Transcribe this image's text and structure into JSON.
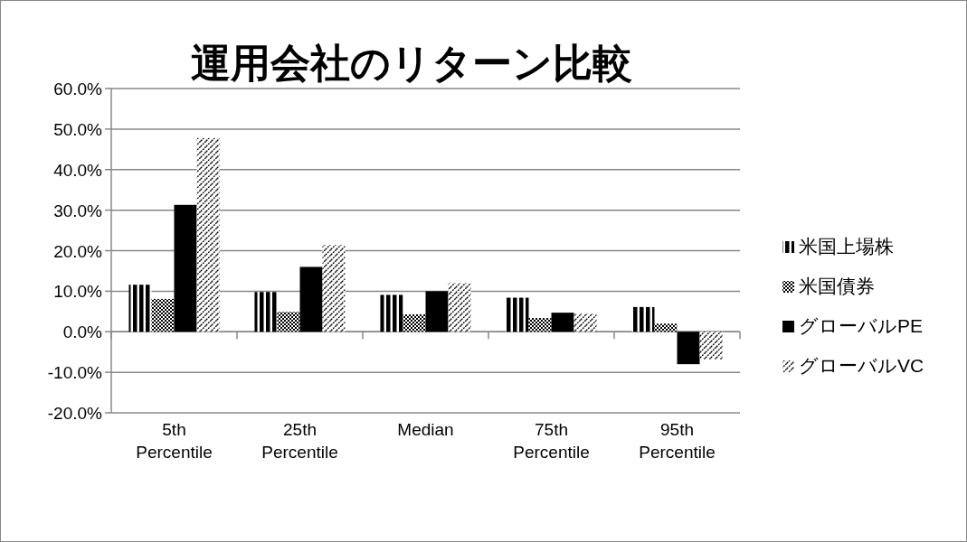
{
  "chart_data": {
    "type": "bar",
    "title": "運用会社のリターン比較",
    "categories": [
      "5th Percentile",
      "25th Percentile",
      "Median",
      "75th Percentile",
      "95th Percentile"
    ],
    "series": [
      {
        "name": "米国上場株",
        "color": "#000000",
        "values": [
          11.6,
          9.8,
          9.1,
          8.4,
          6.1
        ]
      },
      {
        "name": "米国債券",
        "color": "#000000",
        "values": [
          8.1,
          4.9,
          4.3,
          3.4,
          2.0
        ]
      },
      {
        "name": "グローバルPE",
        "color": "#000000",
        "values": [
          31.3,
          16.0,
          10.0,
          4.7,
          -8.0
        ]
      },
      {
        "name": "グローバルVC",
        "color": "#000000",
        "values": [
          47.8,
          21.4,
          12.0,
          4.4,
          -6.8
        ]
      }
    ],
    "ylim": [
      -20,
      60
    ],
    "yticks": [
      {
        "value": -20,
        "label": "-20.0%"
      },
      {
        "value": -10,
        "label": "-10.0%"
      },
      {
        "value": 0,
        "label": "0.0%"
      },
      {
        "value": 10,
        "label": "10.0%"
      },
      {
        "value": 20,
        "label": "20.0%"
      },
      {
        "value": 30,
        "label": "30.0%"
      },
      {
        "value": 40,
        "label": "40.0%"
      },
      {
        "value": 50,
        "label": "50.0%"
      },
      {
        "value": 60,
        "label": "60.0%"
      }
    ],
    "grid": "y",
    "legend": "right"
  }
}
